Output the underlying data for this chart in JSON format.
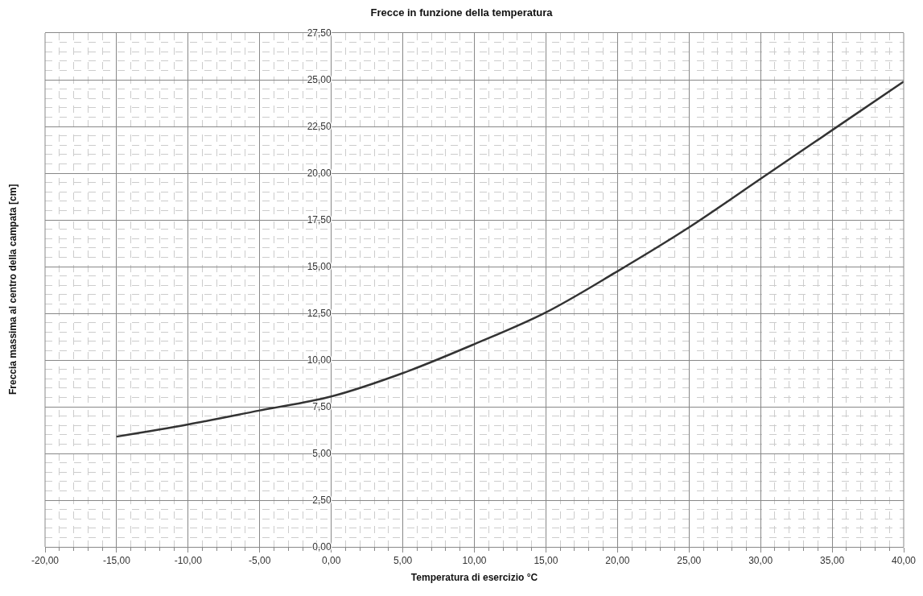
{
  "chart_data": {
    "type": "line",
    "title": "Frecce in funzione della temperatura",
    "xlabel": "Temperatura di esercizio °C",
    "ylabel": "Freccia massima al centro della campata [cm]",
    "x": [
      -15,
      -10,
      -5,
      0,
      5,
      10,
      15,
      20,
      25,
      30,
      35,
      40
    ],
    "series": [
      {
        "color": "#333333",
        "values": [
          5.9,
          6.55,
          7.3,
          8.05,
          9.3,
          10.85,
          12.55,
          14.75,
          17.1,
          19.7,
          22.3,
          24.9
        ]
      }
    ],
    "xlim": [
      -20,
      40
    ],
    "xticks": [
      {
        "value": -20,
        "label": "-20,00"
      },
      {
        "value": -15,
        "label": "-15,00"
      },
      {
        "value": -10,
        "label": "-10,00"
      },
      {
        "value": -5,
        "label": "-5,00"
      },
      {
        "value": 0,
        "label": "0,00"
      },
      {
        "value": 5,
        "label": "5,00"
      },
      {
        "value": 10,
        "label": "10,00"
      },
      {
        "value": 15,
        "label": "15,00"
      },
      {
        "value": 20,
        "label": "20,00"
      },
      {
        "value": 25,
        "label": "25,00"
      },
      {
        "value": 30,
        "label": "30,00"
      },
      {
        "value": 35,
        "label": "35,00"
      },
      {
        "value": 40,
        "label": "40,00"
      }
    ],
    "ylim": [
      0,
      27.5
    ],
    "yticks": [
      {
        "value": 0,
        "label": "0,00"
      },
      {
        "value": 2.5,
        "label": "2,50"
      },
      {
        "value": 5,
        "label": "5,00"
      },
      {
        "value": 7.5,
        "label": "7,50"
      },
      {
        "value": 10,
        "label": "10,00"
      },
      {
        "value": 12.5,
        "label": "12,50"
      },
      {
        "value": 15,
        "label": "15,00"
      },
      {
        "value": 17.5,
        "label": "17,50"
      },
      {
        "value": 20,
        "label": "20,00"
      },
      {
        "value": 22.5,
        "label": "22,50"
      },
      {
        "value": 25,
        "label": "25,00"
      },
      {
        "value": 27.5,
        "label": "27,50"
      }
    ],
    "grid": true,
    "marker": "none",
    "line_style": "solid"
  }
}
